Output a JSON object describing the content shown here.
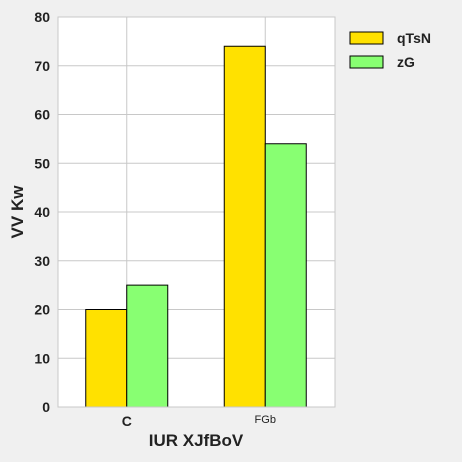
{
  "chart_data": {
    "type": "bar",
    "categories": [
      "C",
      "FGb"
    ],
    "series": [
      {
        "name": "qTsN",
        "values": [
          20,
          74
        ],
        "color": "#ffe100"
      },
      {
        "name": "zG",
        "values": [
          25,
          54
        ],
        "color": "#88ff72"
      }
    ],
    "xlabel": "IUR XJfBoV",
    "ylabel": "VV Kw",
    "ylim": [
      0,
      80
    ],
    "yticks": [
      0,
      10,
      20,
      30,
      40,
      50,
      60,
      70,
      80
    ],
    "grid": true,
    "legend_position": "top-right (outside plot)"
  }
}
